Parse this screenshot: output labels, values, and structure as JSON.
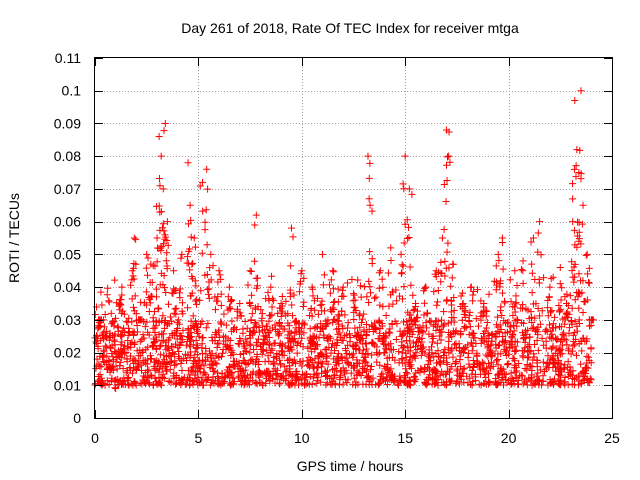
{
  "chart_data": {
    "type": "scatter",
    "title": "Day 261 of 2018, Rate Of TEC Index for receiver mtga",
    "xlabel": "GPS time / hours",
    "ylabel": "ROTI / TECUs",
    "xlim": [
      0,
      25
    ],
    "ylim": [
      0,
      0.11
    ],
    "xticks": [
      0,
      5,
      10,
      15,
      20,
      25
    ],
    "xtick_labels": [
      "0",
      "5",
      "10",
      "15",
      "20",
      "25"
    ],
    "yticks": [
      0,
      0.01,
      0.02,
      0.03,
      0.04,
      0.05,
      0.06,
      0.07,
      0.08,
      0.09,
      0.1,
      0.11
    ],
    "ytick_labels": [
      "0",
      "0.01",
      "0.02",
      "0.03",
      "0.04",
      "0.05",
      "0.06",
      "0.07",
      "0.08",
      "0.09",
      "0.1",
      "0.11"
    ],
    "grid": true,
    "marker": "+",
    "color": "#ff0000",
    "x_data_range": [
      0,
      24
    ],
    "baseline_range": [
      0.01,
      0.03
    ],
    "series": [
      {
        "name": "ROTI",
        "points": [
          [
            0.1,
            0.018
          ],
          [
            0.3,
            0.03
          ],
          [
            0.5,
            0.022
          ],
          [
            0.8,
            0.015
          ],
          [
            1.0,
            0.009
          ],
          [
            1.2,
            0.016
          ],
          [
            1.3,
            0.04
          ],
          [
            1.5,
            0.02
          ],
          [
            1.8,
            0.045
          ],
          [
            1.9,
            0.055
          ],
          [
            2.2,
            0.03
          ],
          [
            2.5,
            0.05
          ],
          [
            2.7,
            0.047
          ],
          [
            3.0,
            0.055
          ],
          [
            3.1,
            0.086
          ],
          [
            3.2,
            0.08
          ],
          [
            3.3,
            0.07
          ],
          [
            3.4,
            0.09
          ],
          [
            3.5,
            0.06
          ],
          [
            3.8,
            0.045
          ],
          [
            4.2,
            0.05
          ],
          [
            4.5,
            0.078
          ],
          [
            4.6,
            0.065
          ],
          [
            4.8,
            0.055
          ],
          [
            5.2,
            0.072
          ],
          [
            5.4,
            0.076
          ],
          [
            5.6,
            0.05
          ],
          [
            6.0,
            0.045
          ],
          [
            6.5,
            0.04
          ],
          [
            7.0,
            0.035
          ],
          [
            7.5,
            0.045
          ],
          [
            7.8,
            0.062
          ],
          [
            8.5,
            0.04
          ],
          [
            9.0,
            0.035
          ],
          [
            9.5,
            0.058
          ],
          [
            10.0,
            0.045
          ],
          [
            10.5,
            0.04
          ],
          [
            11.0,
            0.05
          ],
          [
            11.5,
            0.045
          ],
          [
            12.0,
            0.04
          ],
          [
            12.5,
            0.038
          ],
          [
            13.2,
            0.08
          ],
          [
            13.3,
            0.065
          ],
          [
            13.8,
            0.045
          ],
          [
            14.3,
            0.052
          ],
          [
            14.8,
            0.05
          ],
          [
            15.0,
            0.08
          ],
          [
            15.2,
            0.07
          ],
          [
            15.5,
            0.035
          ],
          [
            16.0,
            0.04
          ],
          [
            16.5,
            0.045
          ],
          [
            16.8,
            0.055
          ],
          [
            17.0,
            0.088
          ],
          [
            17.1,
            0.08
          ],
          [
            17.3,
            0.047
          ],
          [
            17.8,
            0.035
          ],
          [
            18.2,
            0.04
          ],
          [
            18.8,
            0.035
          ],
          [
            19.5,
            0.05
          ],
          [
            19.7,
            0.055
          ],
          [
            20.3,
            0.045
          ],
          [
            20.7,
            0.048
          ],
          [
            21.2,
            0.055
          ],
          [
            21.5,
            0.06
          ],
          [
            22.0,
            0.04
          ],
          [
            22.5,
            0.046
          ],
          [
            22.8,
            0.035
          ],
          [
            23.1,
            0.06
          ],
          [
            23.2,
            0.097
          ],
          [
            23.3,
            0.082
          ],
          [
            23.4,
            0.075
          ],
          [
            23.5,
            0.1
          ],
          [
            23.6,
            0.065
          ],
          [
            23.8,
            0.05
          ],
          [
            24.0,
            0.03
          ]
        ]
      }
    ]
  }
}
